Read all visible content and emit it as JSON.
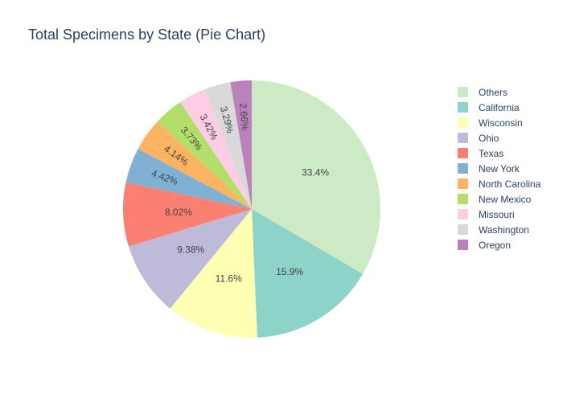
{
  "chart_data": {
    "type": "pie",
    "title": "Total Specimens by State (Pie Chart)",
    "direction": "clockwise",
    "start_angle_deg": 0,
    "slices": [
      {
        "label": "Others",
        "percent": 33.4,
        "text": "33.4%",
        "color": "#ccebc5"
      },
      {
        "label": "California",
        "percent": 15.9,
        "text": "15.9%",
        "color": "#8dd3c7"
      },
      {
        "label": "Wisconsin",
        "percent": 11.6,
        "text": "11.6%",
        "color": "#ffffb3"
      },
      {
        "label": "Ohio",
        "percent": 9.38,
        "text": "9.38%",
        "color": "#bebada"
      },
      {
        "label": "Texas",
        "percent": 8.02,
        "text": "8.02%",
        "color": "#fb8072"
      },
      {
        "label": "New York",
        "percent": 4.42,
        "text": "4.42%",
        "color": "#80b1d3"
      },
      {
        "label": "North Carolina",
        "percent": 4.14,
        "text": "4.14%",
        "color": "#fdb462"
      },
      {
        "label": "New Mexico",
        "percent": 3.73,
        "text": "3.73%",
        "color": "#b3de69"
      },
      {
        "label": "Missouri",
        "percent": 3.42,
        "text": "3.42%",
        "color": "#fccde5"
      },
      {
        "label": "Washington",
        "percent": 3.29,
        "text": "3.29%",
        "color": "#d9d9d9"
      },
      {
        "label": "Oregon",
        "percent": 2.66,
        "text": "2.66%",
        "color": "#bc80bd"
      }
    ],
    "legend_position": "right"
  }
}
